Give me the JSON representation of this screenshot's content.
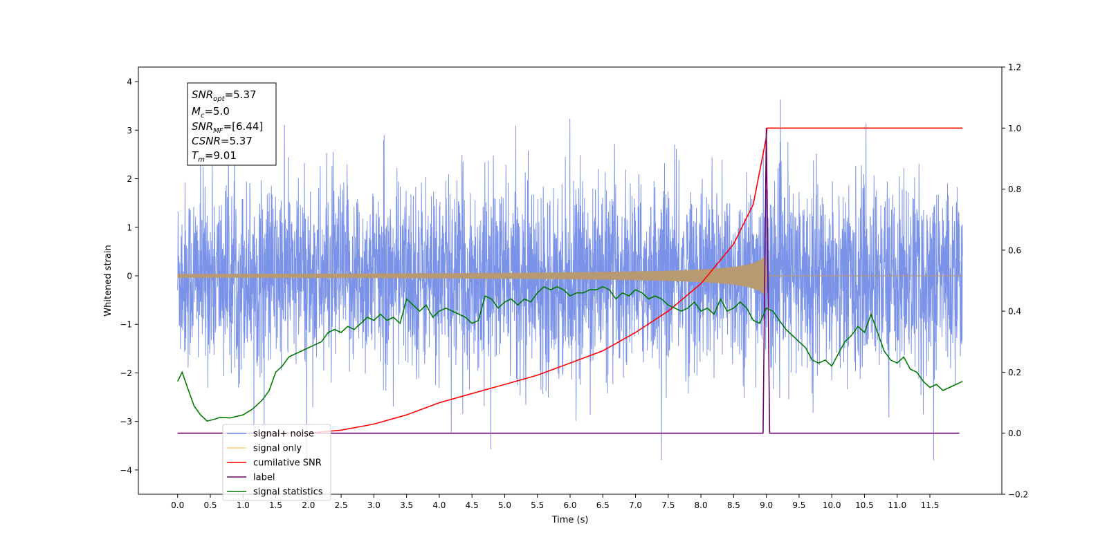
{
  "chart_data": {
    "type": "line",
    "xlabel": "Time (s)",
    "ylabel": "Whitened strain",
    "xlim": [
      -0.6,
      12.6
    ],
    "ylim": [
      -4.5,
      4.3
    ],
    "y2lim": [
      -0.2,
      1.2
    ],
    "x_ticks": [
      "0.0",
      "0.5",
      "1.0",
      "1.5",
      "2.0",
      "2.5",
      "3.0",
      "3.5",
      "4.0",
      "4.5",
      "5.0",
      "5.5",
      "6.0",
      "6.5",
      "7.0",
      "7.5",
      "8.0",
      "8.5",
      "9.0",
      "9.5",
      "10.0",
      "10.5",
      "11.0",
      "11.5"
    ],
    "y_ticks": [
      "4",
      "3",
      "2",
      "1",
      "0",
      "−1",
      "−2",
      "−3",
      "−4"
    ],
    "y2_ticks": [
      "1.2",
      "1.0",
      "0.8",
      "0.6",
      "0.4",
      "0.2",
      "0.0",
      "−0.2"
    ],
    "grid": false,
    "legend_position": "lower-left",
    "colors": {
      "noise": "#6b86e6",
      "signal": "#f5b040",
      "signal_visible": "#b89a72",
      "cumulative": "#ff0000",
      "label": "#6a006a",
      "statistics": "#007a00"
    },
    "annotation": {
      "snr_opt": "=5.37",
      "mc": "=5.0",
      "snr_mf": "=[6.44]",
      "csnr": "=5.37",
      "tm": "=9.01"
    },
    "series": [
      {
        "name": "signal+ noise",
        "axis": "left",
        "note": "dense random strain, amplitude envelope about ±2.4, peaks up to 3.9 and down to -3.8",
        "x_range": [
          0.0,
          12.0
        ],
        "envelope": 2.4,
        "peak_max": 3.9,
        "peak_min": -3.8
      },
      {
        "name": "signal only",
        "axis": "left",
        "x_range": [
          0.0,
          12.0
        ],
        "chirp_end": 9.01,
        "amplitude_at_end": 0.45
      },
      {
        "name": "cumilative SNR",
        "axis": "right",
        "points": [
          [
            0.0,
            0.0
          ],
          [
            2.0,
            0.0
          ],
          [
            2.5,
            0.01
          ],
          [
            3.0,
            0.03
          ],
          [
            3.5,
            0.06
          ],
          [
            4.0,
            0.1
          ],
          [
            4.5,
            0.13
          ],
          [
            5.0,
            0.16
          ],
          [
            5.5,
            0.19
          ],
          [
            6.0,
            0.23
          ],
          [
            6.5,
            0.27
          ],
          [
            7.0,
            0.33
          ],
          [
            7.5,
            0.4
          ],
          [
            8.0,
            0.49
          ],
          [
            8.5,
            0.62
          ],
          [
            8.8,
            0.75
          ],
          [
            9.0,
            0.97
          ],
          [
            9.01,
            1.0
          ],
          [
            12.0,
            1.0
          ]
        ]
      },
      {
        "name": "label",
        "axis": "right",
        "points": [
          [
            0.0,
            0.0
          ],
          [
            8.95,
            0.0
          ],
          [
            9.0,
            1.0
          ],
          [
            9.05,
            0.0
          ],
          [
            11.95,
            0.0
          ]
        ]
      },
      {
        "name": "signal statistics",
        "axis": "right",
        "points": [
          [
            0.0,
            0.17
          ],
          [
            0.07,
            0.2
          ],
          [
            0.15,
            0.15
          ],
          [
            0.25,
            0.09
          ],
          [
            0.35,
            0.06
          ],
          [
            0.45,
            0.04
          ],
          [
            0.55,
            0.045
          ],
          [
            0.65,
            0.052
          ],
          [
            0.8,
            0.05
          ],
          [
            1.0,
            0.06
          ],
          [
            1.15,
            0.08
          ],
          [
            1.3,
            0.11
          ],
          [
            1.4,
            0.14
          ],
          [
            1.5,
            0.2
          ],
          [
            1.6,
            0.22
          ],
          [
            1.7,
            0.25
          ],
          [
            1.8,
            0.26
          ],
          [
            1.9,
            0.27
          ],
          [
            2.0,
            0.28
          ],
          [
            2.1,
            0.29
          ],
          [
            2.2,
            0.3
          ],
          [
            2.3,
            0.33
          ],
          [
            2.4,
            0.34
          ],
          [
            2.5,
            0.33
          ],
          [
            2.6,
            0.35
          ],
          [
            2.7,
            0.34
          ],
          [
            2.8,
            0.36
          ],
          [
            2.9,
            0.38
          ],
          [
            3.0,
            0.37
          ],
          [
            3.1,
            0.39
          ],
          [
            3.2,
            0.37
          ],
          [
            3.3,
            0.38
          ],
          [
            3.4,
            0.36
          ],
          [
            3.5,
            0.44
          ],
          [
            3.6,
            0.42
          ],
          [
            3.7,
            0.4
          ],
          [
            3.8,
            0.42
          ],
          [
            3.9,
            0.38
          ],
          [
            4.0,
            0.4
          ],
          [
            4.1,
            0.41
          ],
          [
            4.2,
            0.4
          ],
          [
            4.3,
            0.39
          ],
          [
            4.4,
            0.38
          ],
          [
            4.5,
            0.36
          ],
          [
            4.6,
            0.37
          ],
          [
            4.7,
            0.45
          ],
          [
            4.8,
            0.44
          ],
          [
            4.9,
            0.41
          ],
          [
            5.0,
            0.43
          ],
          [
            5.1,
            0.44
          ],
          [
            5.2,
            0.42
          ],
          [
            5.3,
            0.44
          ],
          [
            5.4,
            0.43
          ],
          [
            5.5,
            0.46
          ],
          [
            5.6,
            0.48
          ],
          [
            5.7,
            0.47
          ],
          [
            5.8,
            0.48
          ],
          [
            5.9,
            0.47
          ],
          [
            6.0,
            0.45
          ],
          [
            6.1,
            0.46
          ],
          [
            6.2,
            0.46
          ],
          [
            6.3,
            0.47
          ],
          [
            6.4,
            0.47
          ],
          [
            6.5,
            0.48
          ],
          [
            6.6,
            0.47
          ],
          [
            6.7,
            0.44
          ],
          [
            6.8,
            0.46
          ],
          [
            6.9,
            0.45
          ],
          [
            7.0,
            0.47
          ],
          [
            7.1,
            0.46
          ],
          [
            7.2,
            0.44
          ],
          [
            7.3,
            0.45
          ],
          [
            7.4,
            0.44
          ],
          [
            7.5,
            0.42
          ],
          [
            7.6,
            0.41
          ],
          [
            7.7,
            0.4
          ],
          [
            7.8,
            0.41
          ],
          [
            7.9,
            0.43
          ],
          [
            8.0,
            0.4
          ],
          [
            8.1,
            0.41
          ],
          [
            8.2,
            0.39
          ],
          [
            8.3,
            0.44
          ],
          [
            8.4,
            0.4
          ],
          [
            8.5,
            0.41
          ],
          [
            8.6,
            0.43
          ],
          [
            8.7,
            0.41
          ],
          [
            8.8,
            0.37
          ],
          [
            8.9,
            0.36
          ],
          [
            9.0,
            0.41
          ],
          [
            9.1,
            0.4
          ],
          [
            9.2,
            0.37
          ],
          [
            9.3,
            0.34
          ],
          [
            9.4,
            0.32
          ],
          [
            9.5,
            0.3
          ],
          [
            9.6,
            0.28
          ],
          [
            9.7,
            0.24
          ],
          [
            9.8,
            0.23
          ],
          [
            9.9,
            0.24
          ],
          [
            10.0,
            0.22
          ],
          [
            10.1,
            0.26
          ],
          [
            10.2,
            0.3
          ],
          [
            10.3,
            0.32
          ],
          [
            10.4,
            0.35
          ],
          [
            10.5,
            0.33
          ],
          [
            10.6,
            0.39
          ],
          [
            10.7,
            0.33
          ],
          [
            10.8,
            0.27
          ],
          [
            10.9,
            0.24
          ],
          [
            11.0,
            0.23
          ],
          [
            11.1,
            0.25
          ],
          [
            11.2,
            0.21
          ],
          [
            11.3,
            0.2
          ],
          [
            11.4,
            0.17
          ],
          [
            11.5,
            0.15
          ],
          [
            11.6,
            0.16
          ],
          [
            11.7,
            0.14
          ],
          [
            11.8,
            0.15
          ],
          [
            11.9,
            0.16
          ],
          [
            12.0,
            0.17
          ]
        ]
      }
    ],
    "legend": [
      {
        "label": "signal+ noise",
        "color": "#6b86e6"
      },
      {
        "label": "signal only",
        "color": "#ffcc80"
      },
      {
        "label": "cumilative SNR",
        "color": "#ff0000"
      },
      {
        "label": "label",
        "color": "#6a006a"
      },
      {
        "label": "signal statistics",
        "color": "#007a00"
      }
    ]
  }
}
